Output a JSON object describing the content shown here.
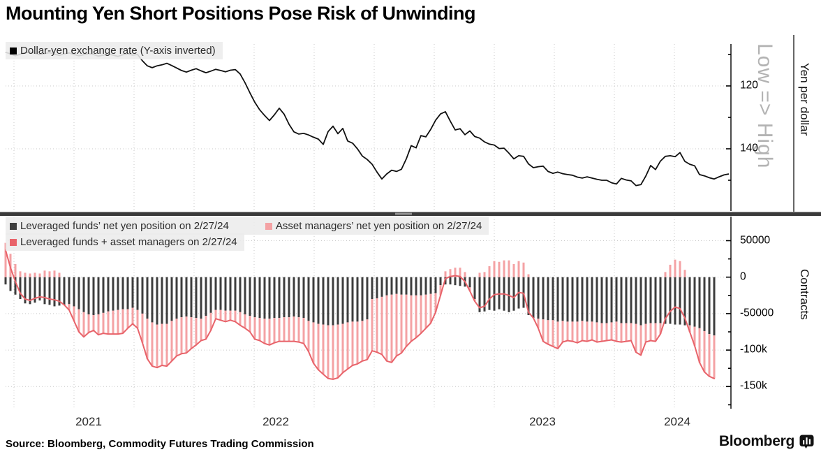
{
  "title": "Mounting Yen Short Positions Pose Risk of Unwinding",
  "footer": {
    "source": "Source: Bloomberg, Commodity Futures Trading Commission",
    "brand": "Bloomberg",
    "brand_icon": "bloomberg-bug-icon"
  },
  "colors": {
    "rate_line": "#111111",
    "leveraged_bar": "#3d3d3d",
    "asset_bar": "#f4a2a4",
    "total_line": "#e8636a",
    "grid": "#c9c9c9",
    "legend_bg": "#ececec",
    "low_high_text": "#b3b3b3"
  },
  "panels": {
    "top": {
      "legend": [
        {
          "label": "Dollar-yen exchange rate (Y-axis inverted)",
          "color": "#000000"
        }
      ],
      "right_axis": {
        "major_ticks": [
          {
            "value": 120,
            "label": "120"
          },
          {
            "value": 140,
            "label": "140"
          }
        ],
        "minor_tick_values": [
          110,
          130,
          150
        ],
        "scale_note": "Low => High",
        "axis_label": "Yen per dollar"
      }
    },
    "bottom": {
      "legend_row1": [
        {
          "label": "Leveraged funds’ net yen position on 2/27/24",
          "color": "#3d3d3d"
        },
        {
          "label": "Asset managers’ net yen position on 2/27/24",
          "color": "#f4a2a4"
        }
      ],
      "legend_row2": [
        {
          "label": "Leveraged funds + asset managers on 2/27/24",
          "color": "#e8636a"
        }
      ],
      "right_axis": {
        "major_ticks": [
          {
            "value": 50,
            "label": "50000"
          },
          {
            "value": 0,
            "label": "0"
          },
          {
            "value": -50,
            "label": "-50000"
          },
          {
            "value": -100,
            "label": "-100k"
          },
          {
            "value": -150,
            "label": "-150k"
          }
        ],
        "minor_tick_values": [
          25,
          -25,
          -75,
          -125,
          -175
        ],
        "axis_label": "Contracts"
      }
    }
  },
  "x_axis": {
    "labels": [
      {
        "text": "2021"
      },
      {
        "text": "2022"
      },
      {
        "text": "2023"
      },
      {
        "text": "2024"
      }
    ]
  },
  "chart_data": [
    {
      "type": "line",
      "title": "Dollar-yen exchange rate (Y-axis inverted)",
      "ylabel": "Yen per dollar",
      "y_inverted": true,
      "ylim": [
        106,
        160
      ],
      "frequency": "weekly, Jan 2021 - Feb 2024",
      "values": [
        109.3,
        109.8,
        110.4,
        109.9,
        109.5,
        109.2,
        109.6,
        110.1,
        109.7,
        109.4,
        109.9,
        110.3,
        109.8,
        109.5,
        110.0,
        110.4,
        110.1,
        109.7,
        110.0,
        110.5,
        110.2,
        109.8,
        110.2,
        110.6,
        110.1,
        109.8,
        110.2,
        110.0,
        112.0,
        113.6,
        114.2,
        113.6,
        113.3,
        112.8,
        113.5,
        114.3,
        115.1,
        115.6,
        115.0,
        114.5,
        115.2,
        115.8,
        115.3,
        114.7,
        115.1,
        115.5,
        115.0,
        114.8,
        116.2,
        119.0,
        122.2,
        125.2,
        127.6,
        129.4,
        131.0,
        129.2,
        127.1,
        129.0,
        132.2,
        134.6,
        135.3,
        135.1,
        135.6,
        136.3,
        136.9,
        138.6,
        134.5,
        132.8,
        135.2,
        133.5,
        137.5,
        138.2,
        140.0,
        142.3,
        143.4,
        144.9,
        147.4,
        149.6,
        148.0,
        146.8,
        147.2,
        146.5,
        143.2,
        139.0,
        139.7,
        135.8,
        136.2,
        133.8,
        130.9,
        128.9,
        128.2,
        131.2,
        134.0,
        133.6,
        135.5,
        134.3,
        136.1,
        136.6,
        137.8,
        138.5,
        138.8,
        139.9,
        139.8,
        141.4,
        143.2,
        142.2,
        142.4,
        144.8,
        146.0,
        145.7,
        145.5,
        147.2,
        147.8,
        147.4,
        147.9,
        148.2,
        148.4,
        149.0,
        149.3,
        148.9,
        149.3,
        149.7,
        150.0,
        150.0,
        150.8,
        151.2,
        149.4,
        149.9,
        150.2,
        151.7,
        151.4,
        148.7,
        145.3,
        146.6,
        143.9,
        142.4,
        142.2,
        142.5,
        141.2,
        144.0,
        144.9,
        145.4,
        148.2,
        148.6,
        149.2,
        149.6,
        148.9,
        148.3,
        148.0
      ]
    },
    {
      "type": "bar",
      "stacked": true,
      "ylabel": "Contracts",
      "units": "thousands of contracts",
      "ylim_thousands": [
        -175,
        60
      ],
      "frequency": "weekly, Jan 2021 - Feb 2024",
      "series": [
        {
          "name": "Leveraged funds’ net yen position on 2/27/24",
          "color": "#3d3d3d",
          "values_k": [
            -10,
            -19,
            -24,
            -30,
            -36,
            -37,
            -35,
            -32,
            -37,
            -38,
            -40,
            -39,
            -38,
            -37,
            -40,
            -44,
            -48,
            -51,
            -52,
            -51,
            -49,
            -47,
            -46,
            -45,
            -44,
            -44,
            -42,
            -45,
            -50,
            -57,
            -62,
            -65,
            -64,
            -64,
            -60,
            -57,
            -55,
            -54,
            -55,
            -56,
            -57,
            -53,
            -49,
            -45,
            -45,
            -46,
            -46,
            -46,
            -48,
            -51,
            -53,
            -55,
            -56,
            -57,
            -57,
            -56,
            -56,
            -55,
            -55,
            -54,
            -55,
            -56,
            -60,
            -62,
            -64,
            -65,
            -66,
            -66,
            -65,
            -64,
            -62,
            -61,
            -61,
            -60,
            -58,
            -30,
            -29,
            -27,
            -25,
            -24,
            -23,
            -24,
            -24,
            -25,
            -25,
            -25,
            -24,
            -23,
            -22,
            -11,
            -10,
            -10,
            -11,
            -12,
            -13,
            -14,
            -30,
            -48,
            -47,
            -45,
            -46,
            -44,
            -46,
            -48,
            -46,
            -43,
            -42,
            -52,
            -56,
            -57,
            -58,
            -59,
            -59,
            -61,
            -60,
            -61,
            -61,
            -61,
            -60,
            -61,
            -61,
            -62,
            -63,
            -63,
            -62,
            -61,
            -63,
            -63,
            -63,
            -64,
            -66,
            -64,
            -63,
            -63,
            -63,
            -64,
            -64,
            -65,
            -65,
            -66,
            -66,
            -68,
            -70,
            -74,
            -78,
            -80
          ]
        },
        {
          "name": "Asset managers’ net yen position on 2/27/24",
          "color": "#f4a2a4",
          "values_k": [
            47,
            32,
            18,
            8,
            6,
            5,
            6,
            5,
            9,
            8,
            9,
            6,
            0,
            -8,
            -20,
            -31,
            -34,
            -25,
            -21,
            -28,
            -28,
            -31,
            -32,
            -33,
            -33,
            -26,
            -22,
            -25,
            -40,
            -55,
            -60,
            -59,
            -57,
            -58,
            -55,
            -51,
            -50,
            -50,
            -43,
            -37,
            -30,
            -32,
            -24,
            -12,
            -14,
            -15,
            -13,
            -15,
            -18,
            -19,
            -22,
            -30,
            -31,
            -34,
            -36,
            -34,
            -32,
            -33,
            -33,
            -34,
            -34,
            -35,
            -42,
            -56,
            -63,
            -68,
            -73,
            -74,
            -73,
            -67,
            -64,
            -60,
            -58,
            -55,
            -55,
            -71,
            -74,
            -79,
            -90,
            -93,
            -85,
            -80,
            -71,
            -63,
            -58,
            -52,
            -46,
            -40,
            -26,
            -14,
            8,
            11,
            13,
            13,
            7,
            -5,
            -3,
            6,
            7,
            15,
            22,
            21,
            23,
            23,
            18,
            22,
            20,
            4,
            0,
            -13,
            -30,
            -33,
            -36,
            -37,
            -29,
            -26,
            -27,
            -29,
            -27,
            -27,
            -25,
            -27,
            -25,
            -24,
            -24,
            -27,
            -26,
            -25,
            -24,
            -39,
            -41,
            -25,
            -24,
            -25,
            -15,
            7,
            17,
            24,
            22,
            10,
            -9,
            -26,
            -47,
            -56,
            -58,
            -59
          ]
        },
        {
          "name": "Leveraged funds + asset managers on 2/27/24",
          "color": "#e8636a",
          "render": "line",
          "derived": "sum of the two bar series"
        }
      ]
    }
  ]
}
